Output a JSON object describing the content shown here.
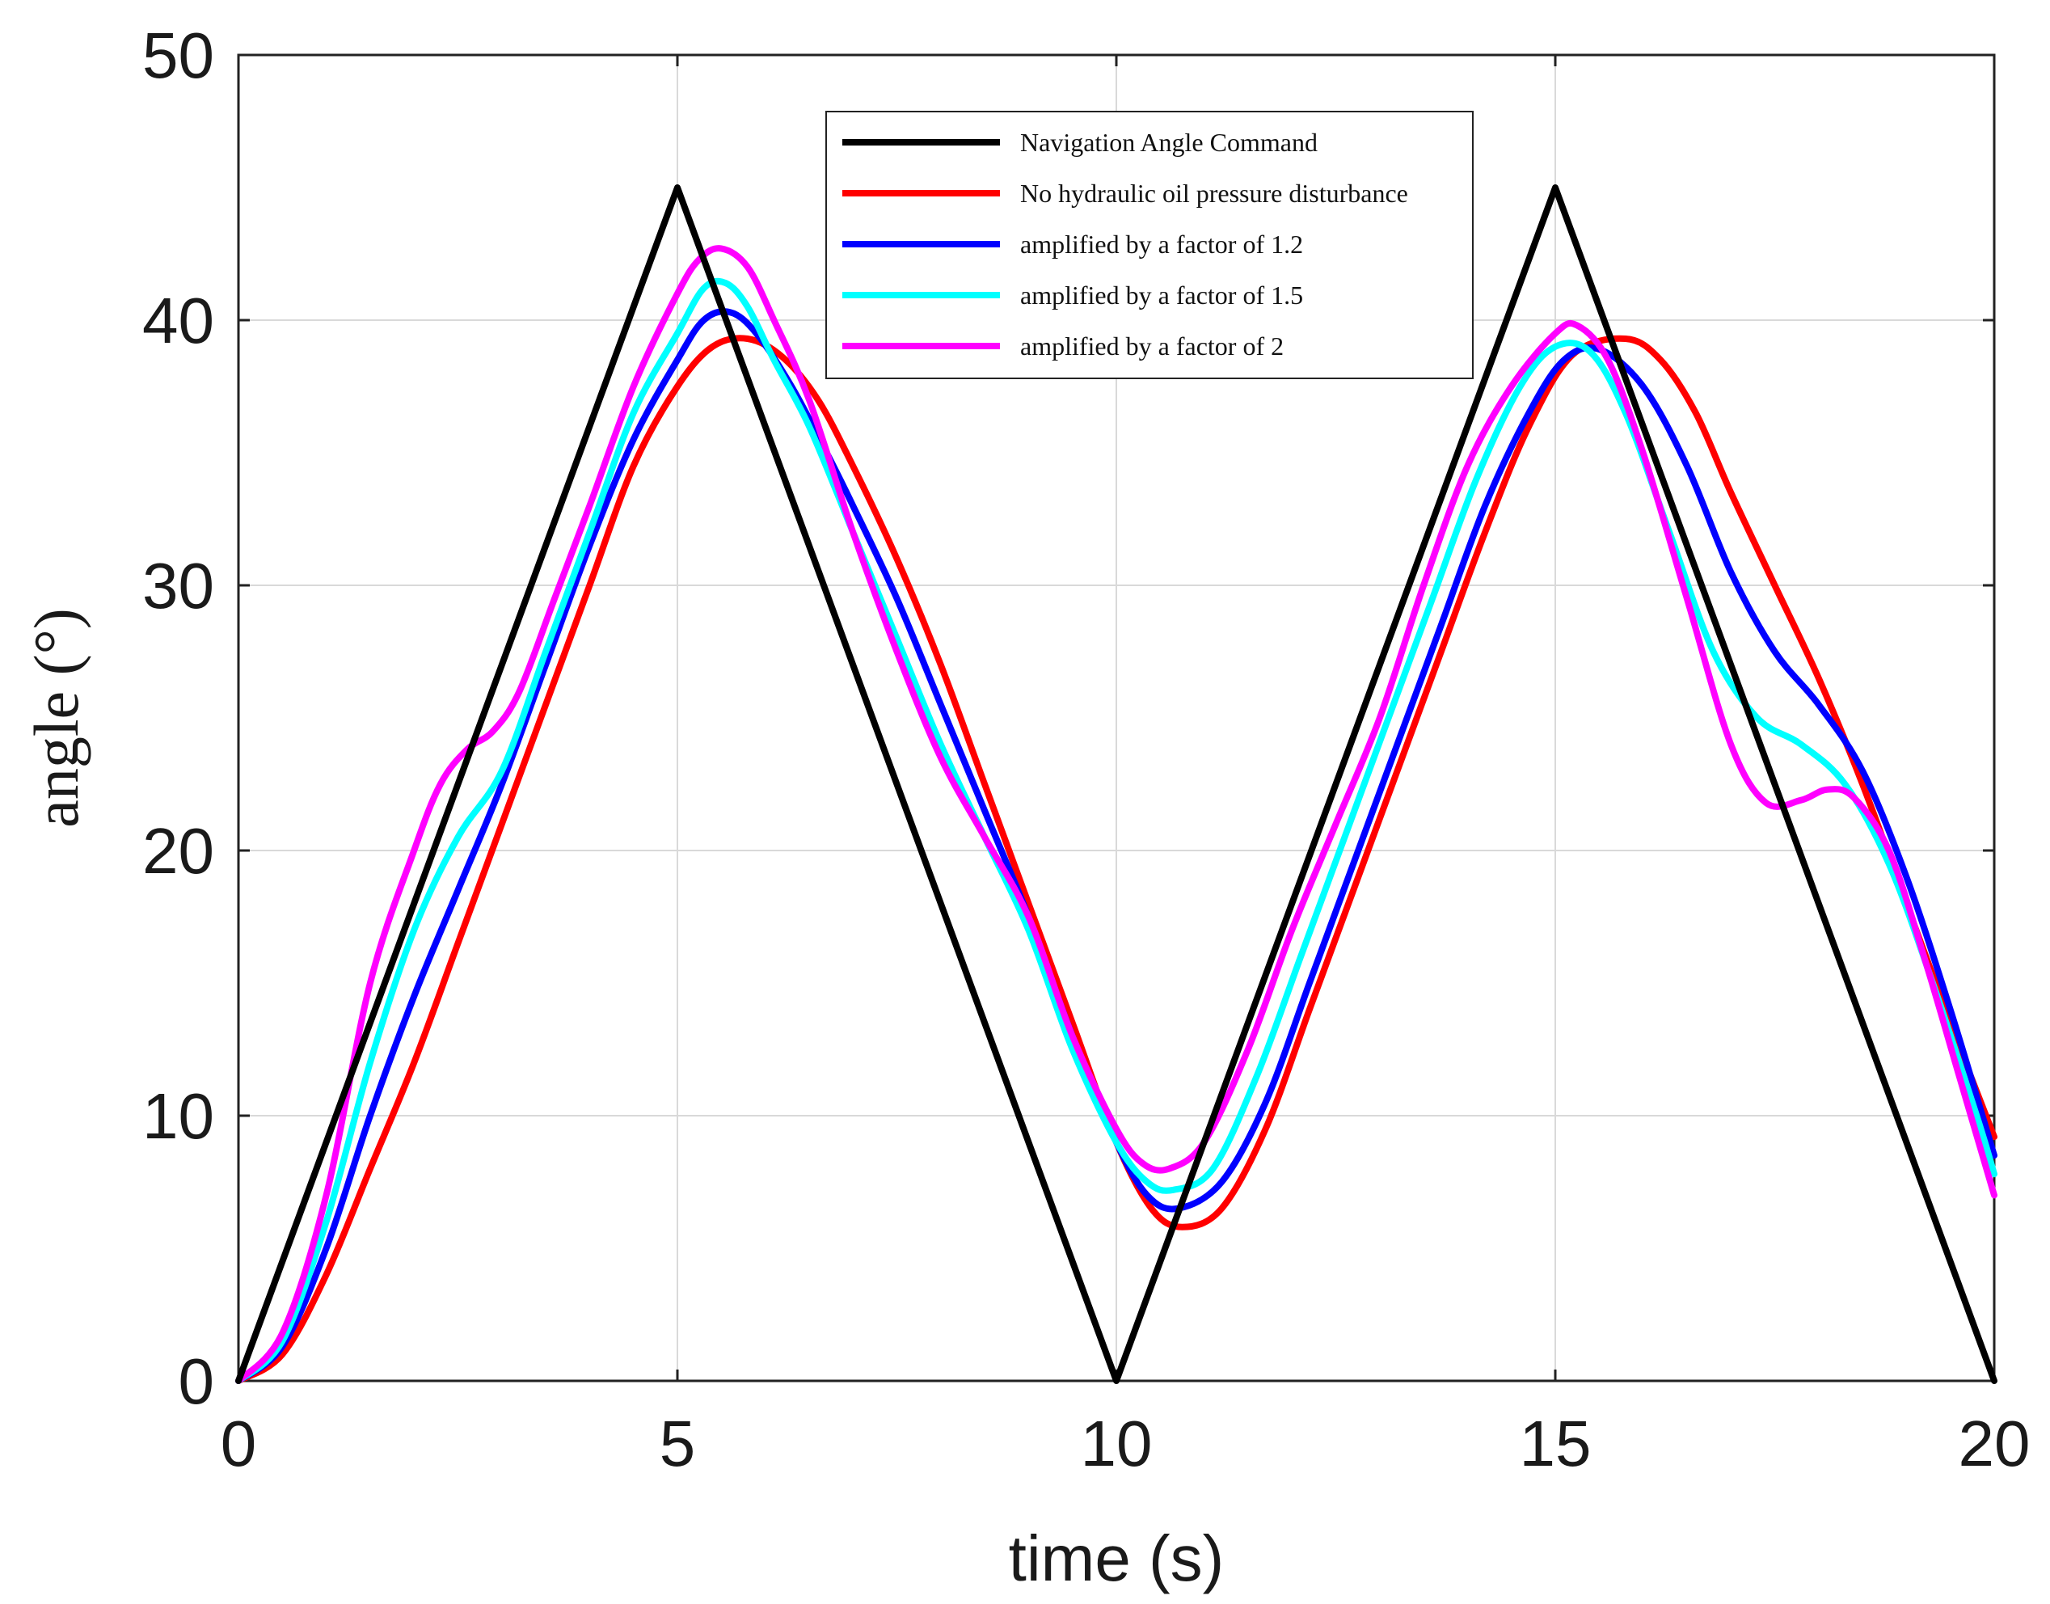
{
  "chart_data": {
    "type": "line",
    "xlabel": "time (s)",
    "ylabel": "angle (°)",
    "xlim": [
      0,
      20
    ],
    "ylim": [
      0,
      50
    ],
    "xticks": [
      0,
      5,
      10,
      15,
      20
    ],
    "yticks": [
      0,
      10,
      20,
      30,
      40,
      50
    ],
    "xtick_labels": [
      "0",
      "5",
      "10",
      "15",
      "20"
    ],
    "ytick_labels": [
      "0",
      "10",
      "20",
      "30",
      "40",
      "50"
    ],
    "grid": true,
    "legend_position": "top-center",
    "series": [
      {
        "name": "Navigation Angle Command",
        "color": "#000000",
        "x": [
          0,
          5,
          10,
          15,
          20
        ],
        "y": [
          0,
          45,
          0,
          45,
          0
        ]
      },
      {
        "name": "No hydraulic oil pressure disturbance",
        "color": "#ff0000",
        "x": [
          0,
          0.5,
          1,
          1.5,
          2,
          2.5,
          3,
          3.5,
          4,
          4.5,
          5,
          5.4,
          5.8,
          6.2,
          6.6,
          7,
          7.5,
          8,
          8.5,
          9,
          9.5,
          10,
          10.4,
          10.75,
          11.2,
          11.7,
          12.2,
          12.7,
          13.2,
          13.7,
          14.2,
          14.7,
          15.2,
          15.8,
          16.2,
          16.6,
          17,
          17.5,
          18,
          18.5,
          19,
          19.5,
          20
        ],
        "y": [
          0,
          1,
          4,
          8,
          12,
          16.5,
          21,
          25.5,
          30,
          34.5,
          37.5,
          39,
          39.3,
          38.6,
          37,
          34.5,
          31,
          27,
          22.5,
          18,
          13.5,
          9,
          6.5,
          5.8,
          6.5,
          9.5,
          14,
          18.5,
          23,
          27.5,
          32,
          36,
          38.7,
          39.3,
          38.5,
          36.5,
          33.5,
          30,
          26.5,
          22.5,
          18,
          13.5,
          9.2
        ]
      },
      {
        "name": "amplified by a factor of 1.2",
        "color": "#0000ff",
        "x": [
          0,
          0.5,
          1,
          1.5,
          2,
          2.5,
          3,
          3.5,
          4,
          4.5,
          5,
          5.3,
          5.6,
          5.9,
          6.3,
          6.7,
          7,
          7.5,
          8,
          8.5,
          9,
          9.5,
          10,
          10.35,
          10.7,
          11.2,
          11.7,
          12.2,
          12.7,
          13.2,
          13.7,
          14.2,
          14.7,
          15.1,
          15.5,
          16,
          16.5,
          17,
          17.5,
          18,
          18.5,
          19,
          19.5,
          20
        ],
        "y": [
          0,
          1.3,
          5,
          10,
          14.5,
          18.5,
          22.5,
          27,
          31.5,
          35.5,
          38.5,
          40,
          40.3,
          39.5,
          37.5,
          35,
          33,
          29.5,
          25.5,
          21.5,
          17.5,
          13,
          9,
          7,
          6.5,
          7.5,
          10.5,
          15,
          19.5,
          24,
          28.5,
          33,
          36.5,
          38.5,
          38.9,
          37.5,
          34.5,
          30.5,
          27.5,
          25.5,
          23,
          19,
          14,
          8.5
        ]
      },
      {
        "name": "amplified by a factor of 1.5",
        "color": "#00ffff",
        "x": [
          0,
          0.5,
          1,
          1.5,
          2,
          2.5,
          3,
          3.5,
          4,
          4.5,
          5,
          5.3,
          5.55,
          5.8,
          6.1,
          6.5,
          7,
          7.5,
          8,
          8.5,
          9,
          9.5,
          10,
          10.35,
          10.65,
          11.1,
          11.6,
          12.1,
          12.6,
          13.1,
          13.6,
          14.1,
          14.6,
          15,
          15.4,
          15.8,
          16.3,
          16.8,
          17.3,
          17.8,
          18.3,
          18.8,
          19.3,
          19.8,
          20
        ],
        "y": [
          0,
          1.5,
          6,
          12,
          17,
          20.5,
          23,
          27.5,
          32,
          36.5,
          39.5,
          41.2,
          41.4,
          40.5,
          38.5,
          36,
          32,
          28,
          24,
          20.5,
          17,
          12.5,
          9,
          7.5,
          7.2,
          8,
          11.5,
          16,
          20.5,
          25,
          29.5,
          34,
          37.5,
          39,
          38.8,
          36.5,
          32,
          27.5,
          25,
          24,
          22.5,
          19.5,
          15,
          10,
          7.8
        ]
      },
      {
        "name": "amplified by a factor of 2",
        "color": "#ff00ff",
        "x": [
          0,
          0.5,
          1,
          1.5,
          2,
          2.3,
          2.6,
          2.9,
          3.2,
          3.6,
          4,
          4.5,
          5,
          5.25,
          5.5,
          5.8,
          6.1,
          6.5,
          7,
          7.5,
          8,
          8.5,
          9,
          9.5,
          10,
          10.3,
          10.6,
          11,
          11.5,
          12,
          12.5,
          13,
          13.5,
          14,
          14.5,
          15,
          15.25,
          15.6,
          16,
          16.5,
          17,
          17.4,
          17.8,
          18.1,
          18.4,
          18.8,
          19.2,
          19.6,
          20
        ],
        "y": [
          0,
          1.8,
          7,
          15,
          20,
          22.5,
          23.8,
          24.5,
          26,
          29.5,
          33,
          37.5,
          41,
          42.3,
          42.7,
          42,
          40,
          37,
          32,
          27.5,
          23.5,
          20.5,
          17.5,
          13,
          9.5,
          8.2,
          8,
          9,
          12.5,
          17,
          21,
          25,
          30,
          34.5,
          37.5,
          39.5,
          39.8,
          38.5,
          35,
          29.5,
          24,
          21.8,
          21.9,
          22.3,
          22,
          20,
          16,
          11.5,
          7
        ]
      }
    ]
  }
}
